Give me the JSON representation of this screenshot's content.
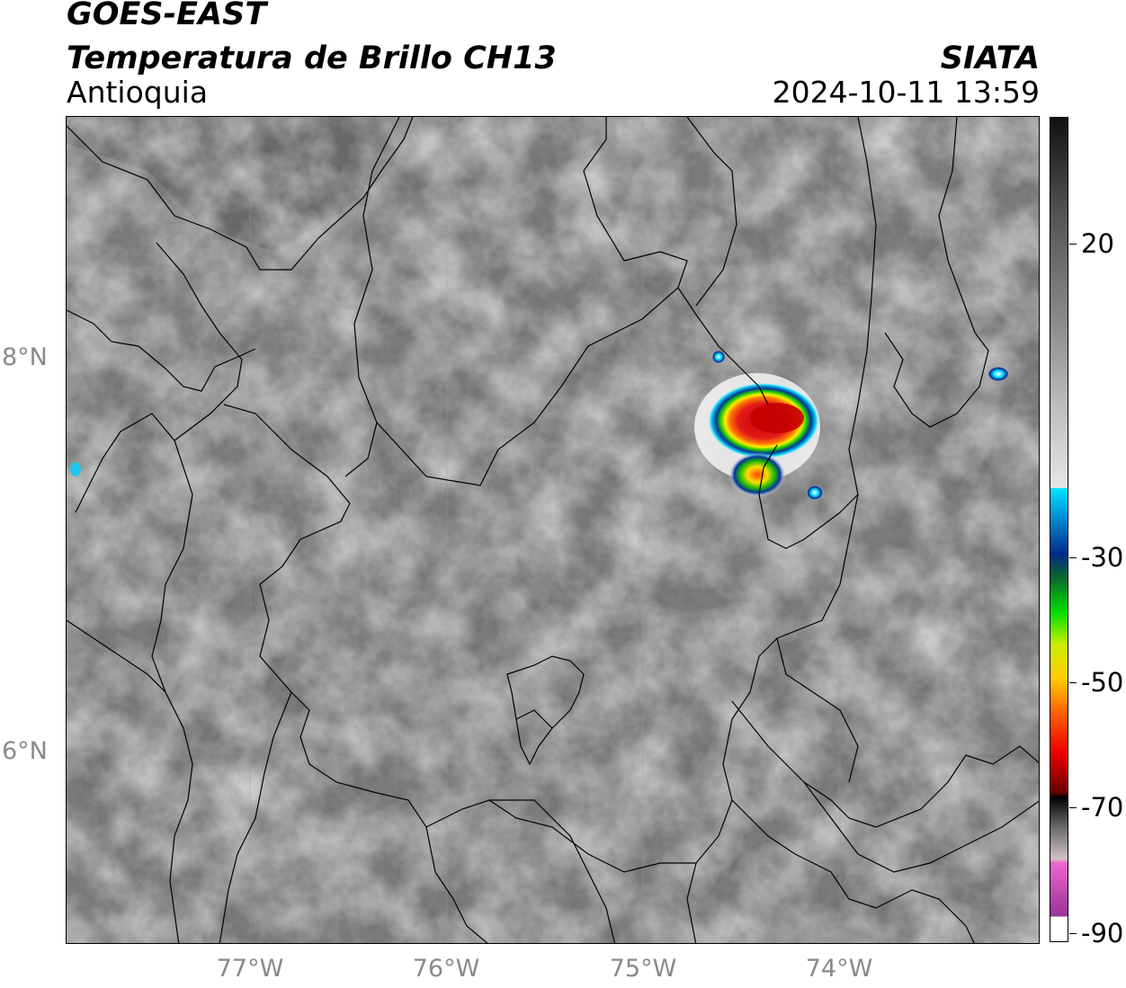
{
  "header": {
    "satellite": "GOES-EAST",
    "product": "Temperatura de Brillo CH13",
    "region": "Antioquia",
    "agency": "SIATA",
    "datetime": "2024-10-11 13:59"
  },
  "map": {
    "latitude_labels": [
      "8°N",
      "6°N"
    ],
    "longitude_labels": [
      "77°W",
      "76°W",
      "75°W",
      "74°W"
    ]
  },
  "colorbar": {
    "tick_labels": [
      "20",
      "-30",
      "-50",
      "-70",
      "-90"
    ]
  },
  "colors": {
    "cloud_top_cold": "#e00000",
    "storm_ring_green": "#00cc00",
    "storm_ring_blue": "#0033aa",
    "cyan": "#00e5ff",
    "magenta": "#cc33cc",
    "border_lines": "#000000"
  }
}
